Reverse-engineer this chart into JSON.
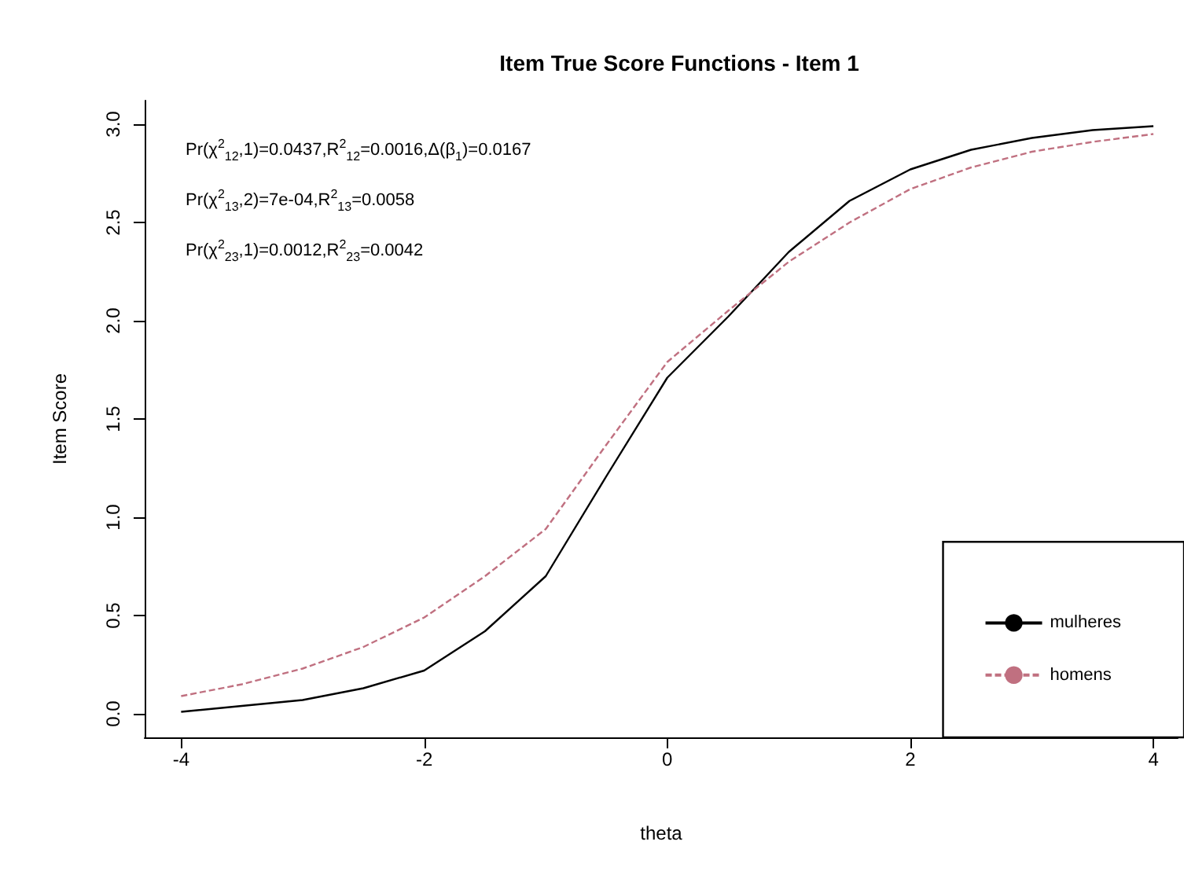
{
  "chart_data": {
    "type": "line",
    "title": "Item True Score Functions - Item 1",
    "xlabel": "theta",
    "ylabel": "Item Score",
    "x": [
      -4,
      -3.5,
      -3,
      -2.5,
      -2,
      -1.5,
      -1,
      -0.5,
      0,
      0.5,
      1,
      1.5,
      2,
      2.5,
      3,
      3.5,
      4
    ],
    "series": [
      {
        "name": "mulheres",
        "color": "#000000",
        "line_style": "solid",
        "values": [
          0.01,
          0.04,
          0.07,
          0.13,
          0.22,
          0.42,
          0.7,
          1.21,
          1.71,
          2.02,
          2.35,
          2.61,
          2.77,
          2.87,
          2.93,
          2.97,
          2.99
        ]
      },
      {
        "name": "homens",
        "color": "#c07080",
        "line_style": "dashed",
        "values": [
          0.09,
          0.15,
          0.23,
          0.34,
          0.49,
          0.7,
          0.94,
          1.37,
          1.79,
          2.05,
          2.3,
          2.5,
          2.67,
          2.78,
          2.86,
          2.91,
          2.95
        ]
      }
    ],
    "xlim": [
      -4.3,
      4.2
    ],
    "xticks": [
      -4,
      -2,
      0,
      2,
      4
    ],
    "ylim": [
      -0.12,
      3.12
    ],
    "yticks": [
      {
        "value": 0,
        "label": "0.0"
      },
      {
        "value": 0.5,
        "label": "0.5"
      },
      {
        "value": 1,
        "label": "1.0"
      },
      {
        "value": 1.5,
        "label": "1.5"
      },
      {
        "value": 2,
        "label": "2.0"
      },
      {
        "value": 2.5,
        "label": "2.5"
      },
      {
        "value": 3,
        "label": "3.0"
      }
    ],
    "annotations": [
      "Pr(χ$^{2}$$_{12}$,1)=0.0437,R$^{2}$$_{12}$=0.0016,Δ(β$_{1}$)=0.0167",
      "Pr(χ$^{2}$$_{13}$,2)=7e-04,R$^{2}$$_{13}$=0.0058",
      "Pr(χ$^{2}$$_{23}$,1)=0.0012,R$^{2}$$_{23}$=0.0042"
    ],
    "legend": "bottom right",
    "grid": false,
    "marker": "none"
  }
}
